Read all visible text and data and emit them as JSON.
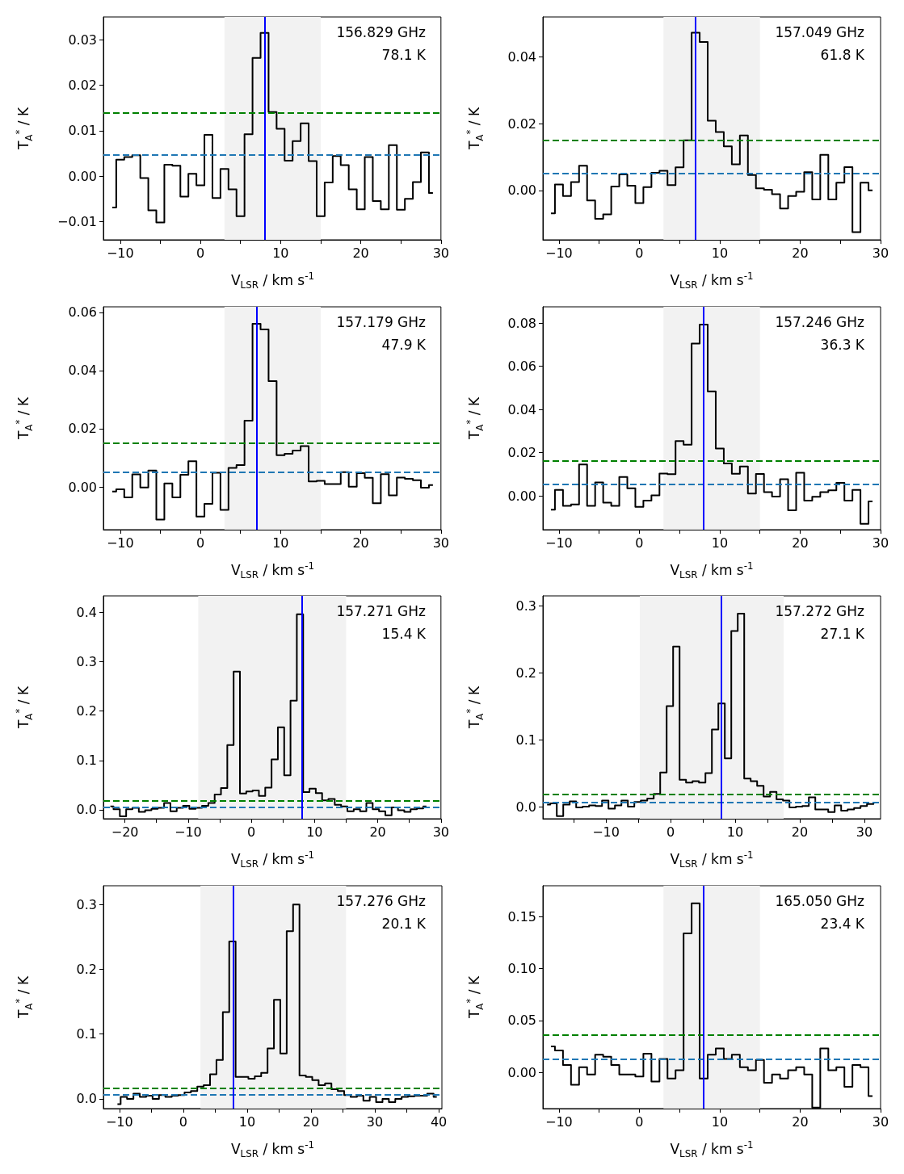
{
  "chart_data": [
    {
      "type": "step",
      "xlabel": "V$_{LSR}$ / km s$^{-1}$",
      "ylabel": "T$_{A}$$^{*}$ / K",
      "annotations": [
        "156.829 GHz",
        "78.1 K"
      ],
      "xlim": [
        -12.1,
        30
      ],
      "ylim": [
        -0.014,
        0.035
      ],
      "xticks": [
        {
          "value": -10,
          "label": "−10"
        },
        {
          "value": -5,
          "label": null
        },
        0,
        {
          "value": 5,
          "label": null
        },
        10,
        {
          "value": 15,
          "label": null
        },
        20,
        {
          "value": 25,
          "label": null
        },
        30
      ],
      "yticks": [
        {
          "value": -0.01,
          "label": "−0.01"
        },
        {
          "value": 0,
          "label": "0.00"
        },
        0.01,
        0.02,
        0.03
      ],
      "x": [
        -11,
        -10,
        -9,
        -8,
        -7,
        -6,
        -5,
        -4,
        -3,
        -2,
        -1,
        0,
        1,
        2,
        3,
        4,
        5,
        6,
        7,
        8,
        9,
        10,
        11,
        12,
        13,
        14,
        15,
        16,
        17,
        18,
        19,
        20,
        21,
        22,
        23,
        24,
        25,
        26,
        27,
        28,
        29
      ],
      "series": [
        {
          "color": "#000000",
          "values": [
            -0.0069,
            0.0036,
            0.0042,
            0.0046,
            -0.0004,
            -0.0075,
            -0.0102,
            0.0025,
            0.0023,
            -0.0045,
            0.0005,
            -0.002,
            0.0091,
            -0.0048,
            0.0016,
            -0.0029,
            -0.0088,
            0.0092,
            0.026,
            0.0315,
            0.0141,
            0.0104,
            0.0034,
            0.0077,
            0.0116,
            0.0033,
            -0.0088,
            -0.0014,
            0.0044,
            0.0024,
            -0.0029,
            -0.0073,
            0.0042,
            -0.0055,
            -0.0073,
            0.0068,
            -0.0074,
            -0.005,
            -0.0013,
            0.0052,
            -0.0037
          ]
        }
      ],
      "bands": [
        {
          "axis": "x",
          "from": 3,
          "to": 15,
          "color": "#f2f2f2"
        }
      ],
      "ref_lines": [
        {
          "axis": "y",
          "value": 0.014,
          "color": "#008000",
          "line_style": "dashed"
        },
        {
          "axis": "y",
          "value": 0.0047,
          "color": "#1f77b4",
          "line_style": "dashed"
        },
        {
          "axis": "x",
          "value": 8,
          "color": "#0000ff",
          "line_style": "solid"
        }
      ]
    },
    {
      "type": "step",
      "xlabel": "V$_{LSR}$ / km s$^{-1}$",
      "ylabel": "T$_{A}$$^{*}$ / K",
      "annotations": [
        "157.049 GHz",
        "61.8 K"
      ],
      "xlim": [
        -12,
        30
      ],
      "ylim": [
        -0.0148,
        0.052
      ],
      "xticks": [
        {
          "value": -10,
          "label": "−10"
        },
        {
          "value": -5,
          "label": null
        },
        0,
        {
          "value": 5,
          "label": null
        },
        10,
        {
          "value": 15,
          "label": null
        },
        20,
        {
          "value": 25,
          "label": null
        },
        30
      ],
      "yticks": [
        {
          "value": 0,
          "label": "0.00"
        },
        0.02,
        0.04
      ],
      "x": [
        -11,
        -10,
        -9,
        -8,
        -7,
        -6,
        -5,
        -4,
        -3,
        -2,
        -1,
        0,
        1,
        2,
        3,
        4,
        5,
        6,
        7,
        8,
        9,
        10,
        11,
        12,
        13,
        14,
        15,
        16,
        17,
        18,
        19,
        20,
        21,
        22,
        23,
        24,
        25,
        26,
        27,
        28,
        29
      ],
      "series": [
        {
          "color": "#000000",
          "values": [
            -0.0069,
            0.0018,
            -0.0017,
            0.0025,
            0.0074,
            -0.003,
            -0.0085,
            -0.0072,
            0.0012,
            0.0048,
            0.0014,
            -0.0038,
            0.001,
            0.0053,
            0.0059,
            0.0016,
            0.0069,
            0.015,
            0.0473,
            0.0445,
            0.0209,
            0.0175,
            0.0132,
            0.0078,
            0.0165,
            0.0046,
            0.0006,
            0.0002,
            -0.0011,
            -0.0054,
            -0.0017,
            -0.0004,
            0.0055,
            -0.0027,
            0.0107,
            -0.0027,
            0.0023,
            0.007,
            -0.0125,
            0.0023,
            0
          ]
        }
      ],
      "bands": [
        {
          "axis": "x",
          "from": 3,
          "to": 15,
          "color": "#f2f2f2"
        }
      ],
      "ref_lines": [
        {
          "axis": "y",
          "value": 0.015,
          "color": "#008000",
          "line_style": "dashed"
        },
        {
          "axis": "y",
          "value": 0.005,
          "color": "#1f77b4",
          "line_style": "dashed"
        },
        {
          "axis": "x",
          "value": 7,
          "color": "#0000ff",
          "line_style": "solid"
        }
      ]
    },
    {
      "type": "step",
      "xlabel": "V$_{LSR}$ / km s$^{-1}$",
      "ylabel": "T$_{A}$$^{*}$ / K",
      "annotations": [
        "157.179 GHz",
        "47.9 K"
      ],
      "xlim": [
        -12.1,
        30
      ],
      "ylim": [
        -0.0147,
        0.0619
      ],
      "xticks": [
        {
          "value": -10,
          "label": "−10"
        },
        {
          "value": -5,
          "label": null
        },
        0,
        {
          "value": 5,
          "label": null
        },
        10,
        {
          "value": 15,
          "label": null
        },
        20,
        {
          "value": 25,
          "label": null
        },
        30
      ],
      "yticks": [
        {
          "value": 0,
          "label": "0.00"
        },
        0.02,
        0.04,
        0.06
      ],
      "x": [
        -11,
        -10,
        -9,
        -8,
        -7,
        -6,
        -5,
        -4,
        -3,
        -2,
        -1,
        0,
        1,
        2,
        3,
        4,
        5,
        6,
        7,
        8,
        9,
        10,
        11,
        12,
        13,
        14,
        15,
        16,
        17,
        18,
        19,
        20,
        21,
        22,
        23,
        24,
        25,
        26,
        27,
        28,
        29
      ],
      "series": [
        {
          "color": "#000000",
          "values": [
            -0.0016,
            -0.0008,
            -0.0036,
            0.0043,
            -0.0002,
            0.0056,
            -0.0112,
            0.0012,
            -0.0036,
            0.0042,
            0.0088,
            -0.0102,
            -0.0058,
            0.0049,
            -0.0079,
            0.0065,
            0.0075,
            0.0228,
            0.0561,
            0.0541,
            0.0364,
            0.0109,
            0.0114,
            0.0125,
            0.014,
            0.0019,
            0.0021,
            0.001,
            0.001,
            0.0051,
            0.0001,
            0.0047,
            0.0031,
            -0.0056,
            0.0044,
            -0.0029,
            0.0032,
            0.0028,
            0.0023,
            -0.0003,
            0.0006
          ]
        }
      ],
      "bands": [
        {
          "axis": "x",
          "from": 3,
          "to": 15,
          "color": "#f2f2f2"
        }
      ],
      "ref_lines": [
        {
          "axis": "y",
          "value": 0.015,
          "color": "#008000",
          "line_style": "dashed"
        },
        {
          "axis": "y",
          "value": 0.005,
          "color": "#1f77b4",
          "line_style": "dashed"
        },
        {
          "axis": "x",
          "value": 7,
          "color": "#0000ff",
          "line_style": "solid"
        }
      ]
    },
    {
      "type": "step",
      "xlabel": "V$_{LSR}$ / km s$^{-1}$",
      "ylabel": "T$_{A}$$^{*}$ / K",
      "annotations": [
        "157.246 GHz",
        "36.3 K"
      ],
      "xlim": [
        -12,
        30
      ],
      "ylim": [
        -0.0157,
        0.0875
      ],
      "xticks": [
        {
          "value": -10,
          "label": "−10"
        },
        {
          "value": -5,
          "label": null
        },
        0,
        {
          "value": 5,
          "label": null
        },
        10,
        {
          "value": 15,
          "label": null
        },
        20,
        {
          "value": 25,
          "label": null
        },
        30
      ],
      "yticks": [
        {
          "value": 0,
          "label": "0.00"
        },
        0.02,
        0.04,
        0.06,
        0.08
      ],
      "x": [
        -11,
        -10,
        -9,
        -8,
        -7,
        -6,
        -5,
        -4,
        -3,
        -2,
        -1,
        0,
        1,
        2,
        3,
        4,
        5,
        6,
        7,
        8,
        9,
        10,
        11,
        12,
        13,
        14,
        15,
        16,
        17,
        18,
        19,
        20,
        21,
        22,
        23,
        24,
        25,
        26,
        27,
        28,
        29
      ],
      "series": [
        {
          "color": "#000000",
          "values": [
            -0.0064,
            0.0027,
            -0.0047,
            -0.004,
            0.0145,
            -0.0047,
            0.0062,
            -0.0032,
            -0.0047,
            0.0087,
            0.0035,
            -0.0051,
            -0.0022,
            0.0002,
            0.0103,
            0.01,
            0.0253,
            0.0237,
            0.0705,
            0.0793,
            0.0483,
            0.0219,
            0.015,
            0.0102,
            0.0136,
            0.001,
            0.0101,
            0.0017,
            -0.0004,
            0.0077,
            -0.0067,
            0.0107,
            -0.0022,
            -0.0005,
            0.0017,
            0.0025,
            0.006,
            -0.0022,
            0.0027,
            -0.013,
            -0.0026
          ]
        }
      ],
      "bands": [
        {
          "axis": "x",
          "from": 3,
          "to": 15,
          "color": "#f2f2f2"
        }
      ],
      "ref_lines": [
        {
          "axis": "y",
          "value": 0.016,
          "color": "#008000",
          "line_style": "dashed"
        },
        {
          "axis": "y",
          "value": 0.0055,
          "color": "#1f77b4",
          "line_style": "dashed"
        },
        {
          "axis": "x",
          "value": 8,
          "color": "#0000ff",
          "line_style": "solid"
        }
      ]
    },
    {
      "type": "step",
      "xlabel": "V$_{LSR}$ / km s$^{-1}$",
      "ylabel": "T$_{A}$$^{*}$ / K",
      "annotations": [
        "157.271 GHz",
        "15.4 K"
      ],
      "xlim": [
        -23.4,
        30
      ],
      "ylim": [
        -0.018,
        0.433
      ],
      "xticks": [
        {
          "value": -20,
          "label": "−20"
        },
        {
          "value": -15,
          "label": null
        },
        {
          "value": -10,
          "label": "−10"
        },
        {
          "value": -5,
          "label": null
        },
        0,
        {
          "value": 5,
          "label": null
        },
        10,
        {
          "value": 15,
          "label": null
        },
        20,
        {
          "value": 25,
          "label": null
        },
        30
      ],
      "yticks": [
        {
          "value": 0,
          "label": "0.0"
        },
        0.1,
        0.2,
        0.3,
        0.4
      ],
      "x": [
        -22.3,
        -21.3,
        -20.3,
        -19.3,
        -18.3,
        -17.3,
        -16.3,
        -15.3,
        -14.3,
        -13.3,
        -12.3,
        -11.3,
        -10.3,
        -9.3,
        -8.3,
        -7.3,
        -6.3,
        -5.3,
        -4.3,
        -3.3,
        -2.3,
        -1.3,
        -0.3,
        0.7,
        1.7,
        2.7,
        3.7,
        4.7,
        5.7,
        6.7,
        7.7,
        8.7,
        9.7,
        10.7,
        11.7,
        12.7,
        13.7,
        14.7,
        15.7,
        16.7,
        17.7,
        18.7,
        19.7,
        20.7,
        21.7,
        22.7,
        23.7,
        24.7,
        25.7,
        26.7,
        27.7
      ],
      "series": [
        {
          "color": "#000000",
          "values": [
            0.007,
            0.001,
            -0.013,
            0.001,
            0.004,
            -0.004,
            -0.001,
            0.002,
            0.004,
            0.014,
            -0.003,
            0.004,
            0.008,
            0.002,
            0.004,
            0.008,
            0.014,
            0.031,
            0.044,
            0.131,
            0.28,
            0.033,
            0.037,
            0.039,
            0.028,
            0.045,
            0.102,
            0.167,
            0.07,
            0.221,
            0.396,
            0.036,
            0.043,
            0.034,
            0.019,
            0.022,
            0.01,
            0.007,
            -0.003,
            0.001,
            -0.003,
            0.014,
            0.001,
            -0.003,
            -0.011,
            0.005,
            -0.001,
            -0.004,
            0.001,
            0.003,
            0.007
          ]
        }
      ],
      "bands": [
        {
          "axis": "x",
          "from": -8.4,
          "to": 15,
          "color": "#f2f2f2"
        }
      ],
      "ref_lines": [
        {
          "axis": "y",
          "value": 0.0186,
          "color": "#008000",
          "line_style": "dashed"
        },
        {
          "axis": "y",
          "value": 0.006,
          "color": "#1f77b4",
          "line_style": "dashed"
        },
        {
          "axis": "x",
          "value": 8,
          "color": "#0000ff",
          "line_style": "solid"
        }
      ]
    },
    {
      "type": "step",
      "xlabel": "V$_{LSR}$ / km s$^{-1}$",
      "ylabel": "T$_{A}$$^{*}$ / K",
      "annotations": [
        "157.272 GHz",
        "27.1 K"
      ],
      "xlim": [
        -19.75,
        32.5
      ],
      "ylim": [
        -0.018,
        0.3145
      ],
      "xticks": [
        {
          "value": -15,
          "label": null
        },
        {
          "value": -10,
          "label": "−10"
        },
        {
          "value": -5,
          "label": null
        },
        0,
        {
          "value": 5,
          "label": null
        },
        10,
        {
          "value": 15,
          "label": null
        },
        20,
        {
          "value": 25,
          "label": null
        },
        30
      ],
      "yticks": [
        {
          "value": 0,
          "label": "0.0"
        },
        0.1,
        0.2,
        0.3
      ],
      "x": [
        -19.1,
        -18.1,
        -17.1,
        -16.1,
        -15.1,
        -14.1,
        -13.1,
        -12.1,
        -11.1,
        -10.1,
        -9.1,
        -8.1,
        -7.1,
        -6.1,
        -5.1,
        -4.1,
        -3.1,
        -2.1,
        -1.1,
        -0.1,
        0.9,
        1.9,
        2.9,
        3.9,
        4.9,
        5.9,
        6.9,
        7.9,
        8.9,
        9.9,
        10.9,
        11.9,
        12.9,
        13.9,
        14.9,
        15.9,
        16.9,
        17.9,
        18.9,
        19.9,
        20.9,
        21.9,
        22.9,
        23.9,
        24.9,
        25.9,
        26.9,
        27.9,
        28.9,
        29.9,
        30.9,
        31.9
      ],
      "series": [
        {
          "color": "#000000",
          "values": [
            0.003,
            0.005,
            -0.014,
            0.003,
            0.008,
            -0.001,
            0,
            0.002,
            0.001,
            0.009,
            -0.003,
            0.002,
            0.009,
            0,
            0.007,
            0.009,
            0.012,
            0.019,
            0.051,
            0.15,
            0.239,
            0.04,
            0.036,
            0.038,
            0.036,
            0.05,
            0.115,
            0.154,
            0.072,
            0.262,
            0.288,
            0.042,
            0.038,
            0.031,
            0.015,
            0.022,
            0.011,
            0.009,
            -0.001,
            0,
            0.001,
            0.014,
            -0.004,
            -0.004,
            -0.008,
            0.002,
            -0.006,
            -0.004,
            -0.002,
            0.001,
            0.004,
            0.006
          ]
        }
      ],
      "bands": [
        {
          "axis": "x",
          "from": -4.75,
          "to": 17.5,
          "color": "#f2f2f2"
        }
      ],
      "ref_lines": [
        {
          "axis": "y",
          "value": 0.018,
          "color": "#008000",
          "line_style": "dashed"
        },
        {
          "axis": "y",
          "value": 0.0069,
          "color": "#1f77b4",
          "line_style": "dashed"
        },
        {
          "axis": "x",
          "value": 7.9,
          "color": "#0000ff",
          "line_style": "solid"
        }
      ]
    },
    {
      "type": "step",
      "xlabel": "V$_{LSR}$ / km s$^{-1}$",
      "ylabel": "T$_{A}$$^{*}$ / K",
      "annotations": [
        "157.276 GHz",
        "20.1 K"
      ],
      "xlim": [
        -12.5,
        40.5
      ],
      "ylim": [
        -0.015,
        0.329
      ],
      "xticks": [
        {
          "value": -10,
          "label": "−10"
        },
        {
          "value": -5,
          "label": null
        },
        0,
        {
          "value": 5,
          "label": null
        },
        10,
        {
          "value": 15,
          "label": null
        },
        20,
        {
          "value": 25,
          "label": null
        },
        30,
        {
          "value": 35,
          "label": null
        },
        40
      ],
      "yticks": [
        {
          "value": 0,
          "label": "0.0"
        },
        0.1,
        0.2,
        0.3
      ],
      "x": [
        -10.3,
        -9.3,
        -8.3,
        -7.3,
        -6.3,
        -5.3,
        -4.3,
        -3.3,
        -2.3,
        -1.3,
        -0.3,
        0.7,
        1.7,
        2.7,
        3.7,
        4.7,
        5.7,
        6.7,
        7.7,
        8.7,
        9.7,
        10.7,
        11.7,
        12.7,
        13.7,
        14.7,
        15.7,
        16.7,
        17.7,
        18.7,
        19.7,
        20.7,
        21.7,
        22.7,
        23.7,
        24.7,
        25.7,
        26.7,
        27.7,
        28.7,
        29.7,
        30.7,
        31.7,
        32.7,
        33.7,
        34.7,
        35.7,
        36.7,
        37.7,
        38.7,
        39.7
      ],
      "series": [
        {
          "color": "#000000",
          "values": [
            -0.008,
            0.003,
            0,
            0.008,
            0.003,
            0.005,
            0,
            0.006,
            0.003,
            0.005,
            0.006,
            0.01,
            0.012,
            0.019,
            0.021,
            0.038,
            0.06,
            0.134,
            0.243,
            0.034,
            0.034,
            0.031,
            0.035,
            0.04,
            0.078,
            0.153,
            0.07,
            0.259,
            0.3,
            0.036,
            0.034,
            0.029,
            0.021,
            0.024,
            0.015,
            0.012,
            0.006,
            0.003,
            0.005,
            -0.003,
            0.003,
            -0.005,
            0,
            -0.005,
            0,
            0.003,
            0.004,
            0.005,
            0.005,
            0.008,
            0.003
          ]
        }
      ],
      "bands": [
        {
          "axis": "x",
          "from": 2.7,
          "to": 25.5,
          "color": "#f2f2f2"
        }
      ],
      "ref_lines": [
        {
          "axis": "y",
          "value": 0.016,
          "color": "#008000",
          "line_style": "dashed"
        },
        {
          "axis": "y",
          "value": 0.006,
          "color": "#1f77b4",
          "line_style": "dashed"
        },
        {
          "axis": "x",
          "value": 7.8,
          "color": "#0000ff",
          "line_style": "solid"
        }
      ]
    },
    {
      "type": "step",
      "xlabel": "V$_{LSR}$ / km s$^{-1}$",
      "ylabel": "T$_{A}$$^{*}$ / K",
      "annotations": [
        "165.050 GHz",
        "23.4 K"
      ],
      "xlim": [
        -12,
        30
      ],
      "ylim": [
        -0.035,
        0.18
      ],
      "xticks": [
        {
          "value": -10,
          "label": "−10"
        },
        {
          "value": -5,
          "label": null
        },
        0,
        {
          "value": 5,
          "label": null
        },
        10,
        {
          "value": 15,
          "label": null
        },
        20,
        {
          "value": 25,
          "label": null
        },
        30
      ],
      "yticks": [
        {
          "value": 0,
          "label": "0.00"
        },
        0.05,
        {
          "value": 0.1,
          "label": "0.10"
        },
        0.15
      ],
      "x": [
        -11,
        -10,
        -9,
        -8,
        -7,
        -6,
        -5,
        -4,
        -3,
        -2,
        -1,
        0,
        1,
        2,
        3,
        4,
        5,
        6,
        7,
        8,
        9,
        10,
        11,
        12,
        13,
        14,
        15,
        16,
        17,
        18,
        19,
        20,
        21,
        22,
        23,
        24,
        25,
        26,
        27,
        28,
        29
      ],
      "series": [
        {
          "color": "#000000",
          "values": [
            0.025,
            0.021,
            0.007,
            -0.012,
            0.005,
            -0.002,
            0.017,
            0.015,
            0.007,
            -0.002,
            -0.002,
            -0.004,
            0.018,
            -0.009,
            0.013,
            -0.006,
            0.002,
            0.134,
            0.163,
            -0.006,
            0.017,
            0.023,
            0.013,
            0.017,
            0.005,
            0.002,
            0.012,
            -0.01,
            -0.002,
            -0.006,
            0.002,
            0.005,
            -0.002,
            -0.034,
            0.023,
            0.002,
            0.005,
            -0.014,
            0.007,
            0.005,
            -0.023
          ]
        }
      ],
      "bands": [
        {
          "axis": "x",
          "from": 3,
          "to": 15,
          "color": "#f2f2f2"
        }
      ],
      "ref_lines": [
        {
          "axis": "y",
          "value": 0.036,
          "color": "#008000",
          "line_style": "dashed"
        },
        {
          "axis": "y",
          "value": 0.0125,
          "color": "#1f77b4",
          "line_style": "dashed"
        },
        {
          "axis": "x",
          "value": 8,
          "color": "#0000ff",
          "line_style": "solid"
        }
      ]
    }
  ]
}
